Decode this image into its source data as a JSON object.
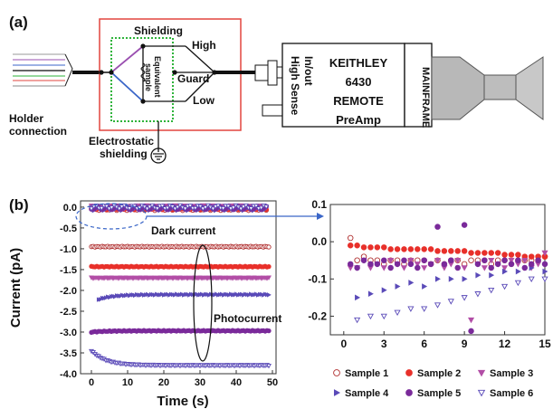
{
  "panel_a": {
    "label": "(a)",
    "holder_connection": [
      "Holder",
      "connection"
    ],
    "shielding": "Shielding",
    "equivalent_sample": [
      "Equivalent",
      "sample"
    ],
    "guard": "Guard",
    "high": "High",
    "low": "Low",
    "electrostatic_shielding": [
      "Electrostatic",
      "shielding"
    ],
    "port_in_out": "In/out",
    "port_high_sense": "High Sense",
    "preamp_lines": [
      "KEITHLEY",
      "6430",
      "REMOTE",
      "PreAmp"
    ],
    "mainframe": "MAINFRAME",
    "colors": {
      "frame": "#e2453f",
      "shield_box": "#2eb33a",
      "wire_purple": "#9a4fb0",
      "wire_blue": "#3a66c8"
    }
  },
  "panel_b": {
    "label": "(b)",
    "annotations": {
      "dark_current": "Dark current",
      "photocurrent": "Photocurrent"
    },
    "legend": [
      "Sample 1",
      "Sample 2",
      "Sample 3",
      "Sample 4",
      "Sample 5",
      "Sample 6"
    ],
    "series_colors": [
      "#b03030",
      "#e8302a",
      "#b24ea6",
      "#5a4ab8",
      "#7a2a9a",
      "#5a4ab8"
    ],
    "arrow_color": "#3a66c8"
  },
  "chart_data": [
    {
      "type": "scatter",
      "xlabel": "Time (s)",
      "ylabel": "Current (pA)",
      "xlim": [
        -3,
        51
      ],
      "ylim": [
        -4.0,
        0.15
      ],
      "xticks": [
        0,
        10,
        20,
        30,
        40,
        50
      ],
      "yticks": [
        0.0,
        -0.5,
        -1.0,
        -1.5,
        -2.0,
        -2.5,
        -3.0,
        -3.5,
        -4.0
      ],
      "x_start": 0,
      "x_step": 0.5,
      "n_points": 99,
      "series": [
        {
          "marker": "circle-open",
          "color": "#b03030",
          "level": -0.95,
          "start_level": -0.95
        },
        {
          "marker": "circle",
          "color": "#e8302a",
          "level": -1.43,
          "start_level": -1.43
        },
        {
          "marker": "triangle-down",
          "color": "#b24ea6",
          "level": -1.7,
          "start_level": -1.7
        },
        {
          "marker": "triangle-right",
          "color": "#5a4ab8",
          "level": -2.1,
          "start_level": -2.3,
          "x_start": 2
        },
        {
          "marker": "circle",
          "color": "#7a2a9a",
          "level": -2.97,
          "start_level": -3.0
        },
        {
          "marker": "triangle-down-open",
          "color": "#5a4ab8",
          "level": -3.8,
          "start_level": -3.45
        }
      ],
      "dark_current_level": -0.02
    },
    {
      "type": "scatter",
      "xlim": [
        -1,
        15
      ],
      "ylim": [
        -0.25,
        0.1
      ],
      "xticks": [
        0,
        3,
        6,
        9,
        12,
        15
      ],
      "yticks": [
        0.1,
        0.0,
        -0.1,
        -0.2
      ],
      "series": [
        {
          "name": "Sample 1",
          "marker": "circle-open",
          "color": "#b03030",
          "x": [
            0.5,
            1,
            1.5,
            2,
            2.5,
            3,
            3.5,
            4,
            4.5,
            5,
            5.5,
            6,
            6.5,
            7,
            7.5,
            8,
            8.5,
            9,
            9.5,
            10,
            10.5,
            11,
            11.5,
            12,
            12.5,
            13,
            13.5,
            14,
            14.5,
            15
          ],
          "y": [
            0.01,
            -0.05,
            -0.04,
            -0.05,
            -0.05,
            -0.06,
            -0.05,
            -0.05,
            -0.06,
            -0.05,
            -0.05,
            -0.05,
            -0.06,
            -0.05,
            -0.06,
            -0.05,
            -0.05,
            -0.06,
            -0.05,
            -0.05,
            -0.05,
            -0.06,
            -0.05,
            -0.05,
            -0.06,
            -0.05,
            -0.05,
            -0.05,
            -0.05,
            -0.04
          ]
        },
        {
          "name": "Sample 2",
          "marker": "circle",
          "color": "#e8302a",
          "x": [
            0.5,
            1,
            1.5,
            2,
            2.5,
            3,
            3.5,
            4,
            4.5,
            5,
            5.5,
            6,
            6.5,
            7,
            7.5,
            8,
            8.5,
            9,
            9.5,
            10,
            10.5,
            11,
            11.5,
            12,
            12.5,
            13,
            13.5,
            14,
            14.5,
            15
          ],
          "y": [
            -0.01,
            -0.01,
            -0.015,
            -0.015,
            -0.015,
            -0.015,
            -0.02,
            -0.02,
            -0.02,
            -0.02,
            -0.02,
            -0.02,
            -0.02,
            -0.025,
            -0.025,
            -0.025,
            -0.025,
            -0.025,
            -0.03,
            -0.03,
            -0.03,
            -0.03,
            -0.03,
            -0.035,
            -0.035,
            -0.035,
            -0.04,
            -0.04,
            -0.04,
            -0.04
          ]
        },
        {
          "name": "Sample 3",
          "marker": "triangle-down",
          "color": "#b24ea6",
          "x": [
            0.5,
            1,
            1.5,
            2,
            2.5,
            3,
            3.5,
            4,
            4.5,
            5,
            5.5,
            6,
            6.5,
            7,
            7.5,
            8,
            8.5,
            9,
            9.5,
            10,
            10.5,
            11,
            11.5,
            12,
            12.5,
            13,
            13.5,
            14,
            14.5,
            15
          ],
          "y": [
            -0.07,
            -0.07,
            -0.05,
            -0.07,
            -0.06,
            -0.07,
            -0.05,
            -0.06,
            -0.07,
            -0.05,
            -0.06,
            -0.07,
            -0.06,
            -0.05,
            -0.07,
            -0.06,
            -0.05,
            -0.07,
            -0.21,
            -0.06,
            -0.07,
            -0.05,
            -0.06,
            -0.07,
            -0.05,
            -0.06,
            -0.05,
            -0.07,
            -0.06,
            -0.03
          ]
        },
        {
          "name": "Sample 4",
          "marker": "triangle-right",
          "color": "#5a4ab8",
          "x": [
            1,
            2,
            3,
            4,
            5,
            6,
            7,
            8,
            9,
            10,
            11,
            12,
            13,
            14,
            15
          ],
          "y": [
            -0.15,
            -0.14,
            -0.13,
            -0.12,
            -0.11,
            -0.12,
            -0.1,
            -0.1,
            -0.1,
            -0.09,
            -0.09,
            -0.08,
            -0.08,
            -0.07,
            -0.08
          ]
        },
        {
          "name": "Sample 5",
          "marker": "circle",
          "color": "#7a2a9a",
          "x": [
            0.5,
            1,
            1.5,
            2,
            2.5,
            3,
            3.5,
            4,
            4.5,
            5,
            5.5,
            6,
            6.5,
            7,
            7.5,
            8,
            8.5,
            9,
            9.5,
            10,
            10.5,
            11,
            11.5,
            12,
            12.5,
            13,
            13.5,
            14,
            14.5,
            15
          ],
          "y": [
            -0.06,
            -0.07,
            -0.05,
            -0.06,
            -0.06,
            -0.05,
            -0.07,
            -0.06,
            -0.05,
            -0.06,
            -0.07,
            -0.05,
            -0.06,
            0.04,
            -0.06,
            -0.05,
            -0.07,
            0.045,
            -0.24,
            -0.06,
            -0.05,
            -0.07,
            -0.06,
            -0.05,
            -0.06,
            -0.05,
            -0.07,
            -0.06,
            -0.05,
            -0.06
          ]
        },
        {
          "name": "Sample 6",
          "marker": "triangle-down-open",
          "color": "#5a4ab8",
          "x": [
            1,
            2,
            3,
            4,
            5,
            6,
            7,
            8,
            9,
            10,
            11,
            12,
            13,
            14,
            15
          ],
          "y": [
            -0.21,
            -0.2,
            -0.2,
            -0.19,
            -0.18,
            -0.18,
            -0.17,
            -0.16,
            -0.15,
            -0.14,
            -0.13,
            -0.12,
            -0.11,
            -0.1,
            -0.1
          ]
        }
      ]
    }
  ]
}
